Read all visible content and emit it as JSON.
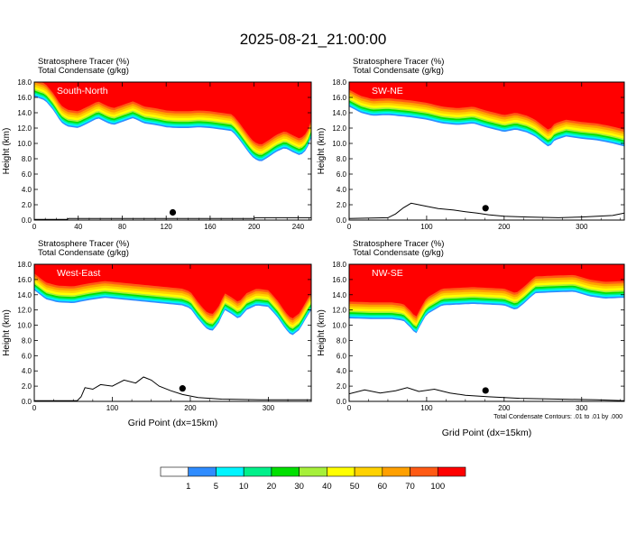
{
  "title": "2025-08-21_21:00:00",
  "header_line1": "Stratosphere Tracer   (%)",
  "header_line2": "Total Condensate   (g/kg)",
  "ylabel": "Height (km)",
  "xlabel": "Grid Point (dx=15km)",
  "contour_note": "Total Condensate Contours: .01 to .01 by .000",
  "colorbar": {
    "labels": [
      "1",
      "5",
      "10",
      "20",
      "30",
      "40",
      "50",
      "60",
      "70",
      "100"
    ],
    "colors": [
      "#ffffff",
      "#2f8cff",
      "#00f5ff",
      "#00f08a",
      "#00e000",
      "#a6f03a",
      "#ffff00",
      "#ffd200",
      "#ffa000",
      "#ff5a14",
      "#ff0000"
    ]
  },
  "chart_data": [
    {
      "type": "heatmap",
      "panel_label": "South-North",
      "title": "Stratosphere Tracer   (%)",
      "subtitle": "Total Condensate   (g/kg)",
      "xlabel": "",
      "ylabel": "Height (km)",
      "xlim": [
        0,
        252
      ],
      "ylim": [
        0,
        18
      ],
      "xticks": [
        "0",
        "40",
        "80",
        "120",
        "160",
        "200",
        "240"
      ],
      "yticks": [
        "0.0",
        "2.0",
        "4.0",
        "6.0",
        "8.0",
        "10.0",
        "12.0",
        "14.0",
        "16.0",
        "18.0"
      ],
      "tracer_base_km": [
        [
          0,
          16.1
        ],
        [
          10,
          15.6
        ],
        [
          18,
          14.2
        ],
        [
          24,
          12.8
        ],
        [
          30,
          12.2
        ],
        [
          40,
          12.0
        ],
        [
          50,
          12.7
        ],
        [
          58,
          13.3
        ],
        [
          66,
          12.7
        ],
        [
          72,
          12.4
        ],
        [
          80,
          12.8
        ],
        [
          90,
          13.3
        ],
        [
          100,
          12.6
        ],
        [
          110,
          12.4
        ],
        [
          120,
          12.1
        ],
        [
          130,
          12.0
        ],
        [
          140,
          12.0
        ],
        [
          150,
          12.1
        ],
        [
          160,
          12.0
        ],
        [
          170,
          11.8
        ],
        [
          180,
          11.6
        ],
        [
          186,
          10.6
        ],
        [
          190,
          9.8
        ],
        [
          195,
          8.8
        ],
        [
          200,
          8.0
        ],
        [
          206,
          7.6
        ],
        [
          212,
          8.1
        ],
        [
          220,
          8.9
        ],
        [
          228,
          9.4
        ],
        [
          236,
          8.8
        ],
        [
          242,
          8.4
        ],
        [
          248,
          9.2
        ],
        [
          252,
          10.8
        ]
      ],
      "terrain_km": [
        [
          0,
          0.1
        ],
        [
          30,
          0.1
        ],
        [
          31,
          0.2
        ],
        [
          200,
          0.2
        ],
        [
          201,
          0.3
        ],
        [
          252,
          0.3
        ]
      ],
      "marker_x": 126
    },
    {
      "type": "heatmap",
      "panel_label": "SW-NE",
      "title": "Stratosphere Tracer   (%)",
      "subtitle": "Total Condensate   (g/kg)",
      "xlabel": "",
      "ylabel": "Height (km)",
      "xlim": [
        0,
        355
      ],
      "ylim": [
        0,
        18
      ],
      "xticks": [
        "0",
        "100",
        "200",
        "300"
      ],
      "yticks": [
        "0.0",
        "2.0",
        "4.0",
        "6.0",
        "8.0",
        "10.0",
        "12.0",
        "14.0",
        "16.0",
        "18.0"
      ],
      "tracer_base_km": [
        [
          0,
          14.8
        ],
        [
          15,
          14.0
        ],
        [
          30,
          13.6
        ],
        [
          50,
          13.7
        ],
        [
          80,
          13.4
        ],
        [
          100,
          13.1
        ],
        [
          120,
          12.6
        ],
        [
          140,
          12.4
        ],
        [
          160,
          12.6
        ],
        [
          180,
          12.0
        ],
        [
          200,
          11.5
        ],
        [
          215,
          11.8
        ],
        [
          230,
          11.4
        ],
        [
          240,
          10.9
        ],
        [
          250,
          10.1
        ],
        [
          258,
          9.5
        ],
        [
          265,
          10.4
        ],
        [
          280,
          10.9
        ],
        [
          300,
          10.6
        ],
        [
          320,
          10.4
        ],
        [
          340,
          10.0
        ],
        [
          355,
          9.6
        ]
      ],
      "terrain_km": [
        [
          0,
          0.2
        ],
        [
          50,
          0.3
        ],
        [
          60,
          0.8
        ],
        [
          70,
          1.6
        ],
        [
          80,
          2.2
        ],
        [
          90,
          2.0
        ],
        [
          100,
          1.8
        ],
        [
          115,
          1.5
        ],
        [
          135,
          1.3
        ],
        [
          150,
          1.1
        ],
        [
          165,
          0.9
        ],
        [
          180,
          0.7
        ],
        [
          200,
          0.5
        ],
        [
          230,
          0.4
        ],
        [
          270,
          0.3
        ],
        [
          300,
          0.4
        ],
        [
          320,
          0.5
        ],
        [
          340,
          0.6
        ],
        [
          355,
          0.9
        ]
      ],
      "marker_x": 176
    },
    {
      "type": "heatmap",
      "panel_label": "West-East",
      "title": "Stratosphere Tracer   (%)",
      "subtitle": "Total Condensate   (g/kg)",
      "xlabel": "Grid Point (dx=15km)",
      "ylabel": "Height (km)",
      "xlim": [
        0,
        355
      ],
      "ylim": [
        0,
        18
      ],
      "xticks": [
        "0",
        "100",
        "200",
        "300"
      ],
      "yticks": [
        "0.0",
        "2.0",
        "4.0",
        "6.0",
        "8.0",
        "10.0",
        "12.0",
        "14.0",
        "16.0",
        "18.0"
      ],
      "tracer_base_km": [
        [
          0,
          14.6
        ],
        [
          15,
          13.4
        ],
        [
          30,
          13.0
        ],
        [
          50,
          12.9
        ],
        [
          70,
          13.3
        ],
        [
          90,
          13.6
        ],
        [
          110,
          13.4
        ],
        [
          130,
          13.2
        ],
        [
          150,
          13.0
        ],
        [
          170,
          12.8
        ],
        [
          190,
          12.6
        ],
        [
          200,
          12.2
        ],
        [
          210,
          10.8
        ],
        [
          220,
          9.6
        ],
        [
          228,
          9.2
        ],
        [
          236,
          10.2
        ],
        [
          244,
          12.0
        ],
        [
          254,
          11.4
        ],
        [
          262,
          10.8
        ],
        [
          272,
          12.0
        ],
        [
          285,
          12.6
        ],
        [
          300,
          12.4
        ],
        [
          312,
          11.0
        ],
        [
          322,
          9.5
        ],
        [
          330,
          8.6
        ],
        [
          340,
          9.4
        ],
        [
          350,
          11.2
        ],
        [
          355,
          12.0
        ]
      ],
      "terrain_km": [
        [
          0,
          0.1
        ],
        [
          55,
          0.1
        ],
        [
          60,
          0.6
        ],
        [
          65,
          1.8
        ],
        [
          75,
          1.6
        ],
        [
          85,
          2.2
        ],
        [
          100,
          2.0
        ],
        [
          115,
          2.8
        ],
        [
          130,
          2.4
        ],
        [
          140,
          3.2
        ],
        [
          150,
          2.8
        ],
        [
          160,
          2.0
        ],
        [
          175,
          1.4
        ],
        [
          190,
          0.9
        ],
        [
          210,
          0.5
        ],
        [
          240,
          0.3
        ],
        [
          290,
          0.2
        ],
        [
          355,
          0.2
        ]
      ],
      "marker_x": 190
    },
    {
      "type": "heatmap",
      "panel_label": "NW-SE",
      "title": "Stratosphere Tracer   (%)",
      "subtitle": "Total Condensate   (g/kg)",
      "xlabel": "Grid Point (dx=15km)",
      "ylabel": "Height (km)",
      "xlim": [
        0,
        355
      ],
      "ylim": [
        0,
        18
      ],
      "xticks": [
        "0",
        "100",
        "200",
        "300"
      ],
      "yticks": [
        "0.0",
        "2.0",
        "4.0",
        "6.0",
        "8.0",
        "10.0",
        "12.0",
        "14.0",
        "16.0",
        "18.0"
      ],
      "tracer_base_km": [
        [
          0,
          10.9
        ],
        [
          30,
          10.8
        ],
        [
          55,
          10.8
        ],
        [
          70,
          10.6
        ],
        [
          80,
          9.6
        ],
        [
          86,
          8.8
        ],
        [
          92,
          10.0
        ],
        [
          100,
          11.4
        ],
        [
          120,
          12.6
        ],
        [
          160,
          12.8
        ],
        [
          200,
          12.6
        ],
        [
          215,
          12.0
        ],
        [
          225,
          12.8
        ],
        [
          240,
          14.2
        ],
        [
          260,
          14.3
        ],
        [
          290,
          14.4
        ],
        [
          310,
          13.8
        ],
        [
          330,
          13.5
        ],
        [
          355,
          13.6
        ]
      ],
      "terrain_km": [
        [
          0,
          1.0
        ],
        [
          20,
          1.5
        ],
        [
          40,
          1.1
        ],
        [
          60,
          1.4
        ],
        [
          75,
          1.8
        ],
        [
          90,
          1.3
        ],
        [
          110,
          1.6
        ],
        [
          130,
          1.1
        ],
        [
          150,
          0.8
        ],
        [
          180,
          0.6
        ],
        [
          220,
          0.4
        ],
        [
          270,
          0.3
        ],
        [
          320,
          0.2
        ],
        [
          355,
          0.1
        ]
      ],
      "marker_x": 176
    }
  ]
}
